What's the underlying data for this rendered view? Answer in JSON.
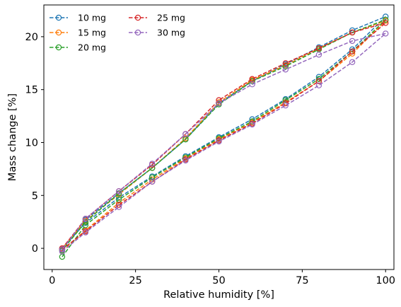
{
  "chart_data": {
    "type": "line",
    "title": "",
    "xlabel": "Relative humidity [%]",
    "ylabel": "Mass change [%]",
    "xlim": [
      -2.5,
      102.5
    ],
    "ylim": [
      -2,
      23
    ],
    "xticks": [
      0,
      25,
      50,
      75,
      100
    ],
    "yticks": [
      0,
      5,
      10,
      15,
      20
    ],
    "grid": false,
    "legend": {
      "placement": "top-left",
      "columns": 2
    },
    "line_style": "dashed",
    "marker": "open-circle",
    "x": [
      3,
      10,
      20,
      30,
      40,
      50,
      60,
      70,
      80,
      90,
      100,
      90,
      80,
      70,
      60,
      50,
      40,
      30,
      20,
      10,
      3
    ],
    "series": [
      {
        "name": "10 mg",
        "color": "#1f77b4",
        "values": [
          0.0,
          2.4,
          4.8,
          6.8,
          8.7,
          10.5,
          12.2,
          14.1,
          16.2,
          18.8,
          21.9,
          20.6,
          19.0,
          17.4,
          15.8,
          13.7,
          10.3,
          7.6,
          5.2,
          2.7,
          -0.1
        ]
      },
      {
        "name": "15 mg",
        "color": "#ff7f0e",
        "values": [
          -0.2,
          1.7,
          4.3,
          6.5,
          8.5,
          10.3,
          11.9,
          13.8,
          15.8,
          18.4,
          21.5,
          20.4,
          18.9,
          17.3,
          15.9,
          13.8,
          10.4,
          7.6,
          5.1,
          2.6,
          0.0
        ]
      },
      {
        "name": "20 mg",
        "color": "#2ca02c",
        "values": [
          -0.8,
          2.2,
          4.6,
          6.7,
          8.6,
          10.4,
          12.0,
          14.0,
          16.0,
          18.6,
          21.6,
          20.4,
          18.8,
          17.2,
          15.8,
          13.6,
          10.3,
          7.6,
          5.2,
          2.5,
          -0.2
        ]
      },
      {
        "name": "25 mg",
        "color": "#d62728",
        "values": [
          -0.1,
          1.6,
          4.1,
          6.3,
          8.4,
          10.2,
          11.8,
          13.7,
          15.8,
          18.6,
          21.3,
          20.4,
          18.9,
          17.5,
          16.0,
          14.0,
          10.8,
          7.9,
          5.4,
          2.8,
          0.0
        ]
      },
      {
        "name": "30 mg",
        "color": "#9467bd",
        "values": [
          -0.3,
          1.5,
          3.9,
          6.3,
          8.3,
          10.1,
          11.7,
          13.5,
          15.4,
          17.6,
          20.3,
          19.6,
          18.3,
          16.9,
          15.5,
          13.7,
          10.8,
          8.0,
          5.4,
          2.8,
          -0.1
        ]
      }
    ]
  }
}
